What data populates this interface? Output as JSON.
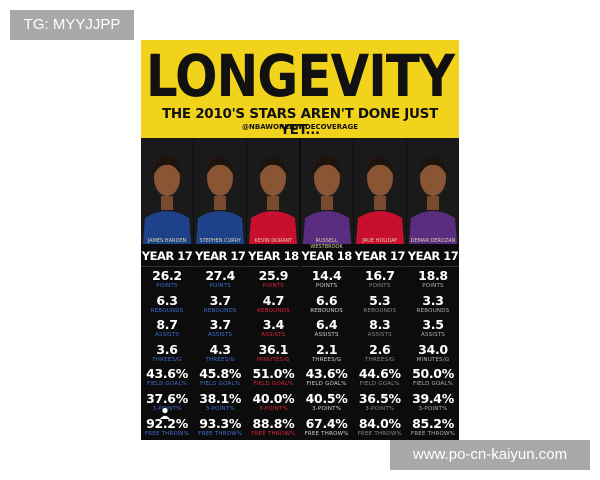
{
  "watermarks": {
    "top": "TG: MYYJJPP",
    "bottom": "www.po-cn-kaiyun.com"
  },
  "poster": {
    "title": "LONGEVITY",
    "subtitle": "THE 2010'S STARS AREN'T DONE JUST YET...",
    "handle": "@NBAWORLDWIDECOVERAGE",
    "banner_color": "#f2d31b",
    "players": [
      {
        "name": "JAMES HARDEN",
        "year": "YEAR 17",
        "jersey": "#1d428a",
        "label_color": "#3f6ed8",
        "stats": [
          {
            "v": "26.2",
            "l": "POINTS"
          },
          {
            "v": "6.3",
            "l": "REBOUNDS"
          },
          {
            "v": "8.7",
            "l": "ASSISTS"
          },
          {
            "v": "3.6",
            "l": "THREES/G"
          },
          {
            "v": "43.6%",
            "l": "FIELD GOAL%"
          },
          {
            "v": "37.6%",
            "l": "3-POINT%"
          },
          {
            "v": "92.2%",
            "l": "FREE THROW%"
          }
        ]
      },
      {
        "name": "STEPHEN CURRY",
        "year": "YEAR 17",
        "jersey": "#1d428a",
        "label_color": "#3f6ed8",
        "stats": [
          {
            "v": "27.4",
            "l": "POINTS"
          },
          {
            "v": "3.7",
            "l": "REBOUNDS"
          },
          {
            "v": "3.7",
            "l": "ASSISTS"
          },
          {
            "v": "4.3",
            "l": "THREES/G"
          },
          {
            "v": "45.8%",
            "l": "FIELD GOAL%"
          },
          {
            "v": "38.1%",
            "l": "3-POINT%"
          },
          {
            "v": "93.3%",
            "l": "FREE THROW%"
          }
        ]
      },
      {
        "name": "KEVIN DURANT",
        "year": "YEAR 18",
        "jersey": "#c8102e",
        "label_color": "#e0243a",
        "stats": [
          {
            "v": "25.9",
            "l": "POINTS"
          },
          {
            "v": "4.7",
            "l": "REBOUNDS"
          },
          {
            "v": "3.4",
            "l": "ASSISTS"
          },
          {
            "v": "36.1",
            "l": "MINUTES/G"
          },
          {
            "v": "51.0%",
            "l": "FIELD GOAL%"
          },
          {
            "v": "40.0%",
            "l": "3-POINT%"
          },
          {
            "v": "88.8%",
            "l": "FREE THROW%"
          }
        ]
      },
      {
        "name": "RUSSELL WESTBROOK",
        "year": "YEAR 18",
        "jersey": "#5a2d81",
        "label_color": "#d0d0d0",
        "stats": [
          {
            "v": "14.4",
            "l": "POINTS"
          },
          {
            "v": "6.6",
            "l": "REBOUNDS"
          },
          {
            "v": "6.4",
            "l": "ASSISTS"
          },
          {
            "v": "2.1",
            "l": "THREES/G"
          },
          {
            "v": "43.6%",
            "l": "FIELD GOAL%"
          },
          {
            "v": "40.5%",
            "l": "3-POINT%"
          },
          {
            "v": "67.4%",
            "l": "FREE THROW%"
          }
        ]
      },
      {
        "name": "JRUE HOLIDAY",
        "year": "YEAR 17",
        "jersey": "#c8102e",
        "label_color": "#8a8a8a",
        "stats": [
          {
            "v": "16.7",
            "l": "POINTS"
          },
          {
            "v": "5.3",
            "l": "REBOUNDS"
          },
          {
            "v": "8.3",
            "l": "ASSISTS"
          },
          {
            "v": "2.6",
            "l": "THREES/G"
          },
          {
            "v": "44.6%",
            "l": "FIELD GOAL%"
          },
          {
            "v": "36.5%",
            "l": "3-POINT%"
          },
          {
            "v": "84.0%",
            "l": "FREE THROW%"
          }
        ]
      },
      {
        "name": "DEMAR DEROZAN",
        "year": "YEAR 17",
        "jersey": "#5a2d81",
        "label_color": "#b0b0b0",
        "stats": [
          {
            "v": "18.8",
            "l": "POINTS"
          },
          {
            "v": "3.3",
            "l": "REBOUNDS"
          },
          {
            "v": "3.5",
            "l": "ASSISTS"
          },
          {
            "v": "34.0",
            "l": "MINUTES/G"
          },
          {
            "v": "50.0%",
            "l": "FIELD GOAL%"
          },
          {
            "v": "39.4%",
            "l": "3-POINT%"
          },
          {
            "v": "85.2%",
            "l": "FREE THROW%"
          }
        ]
      }
    ]
  }
}
